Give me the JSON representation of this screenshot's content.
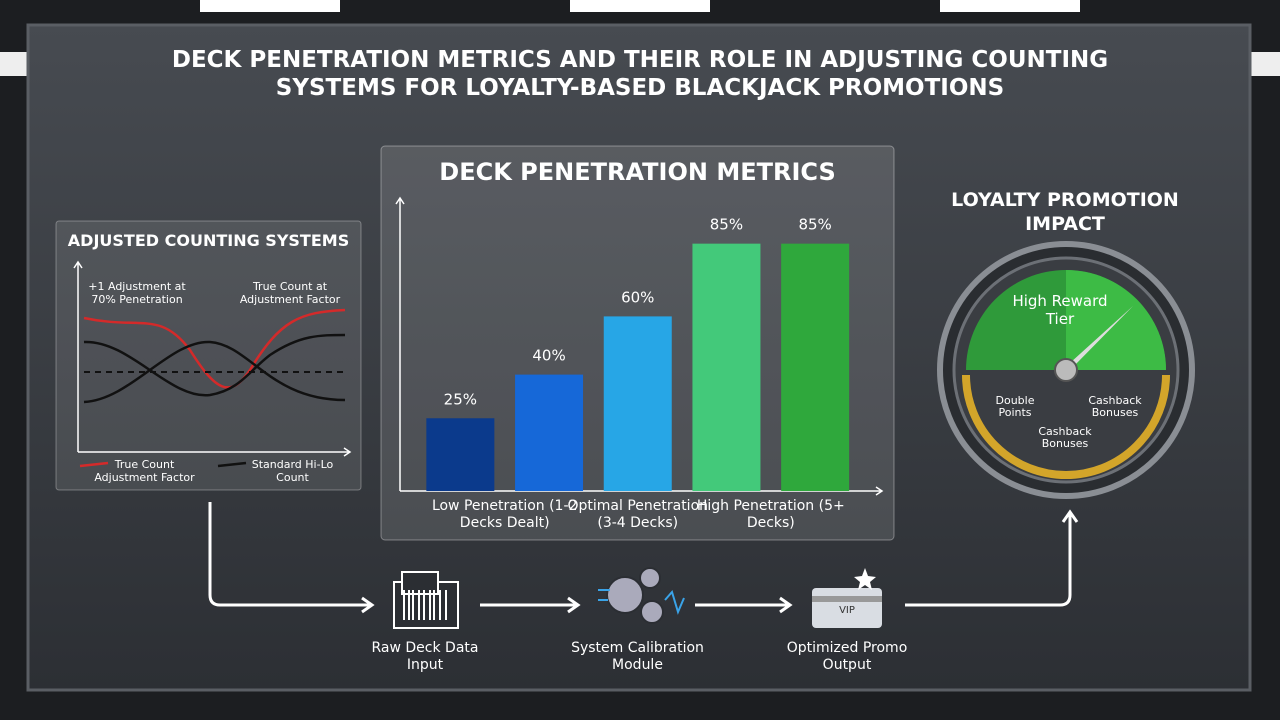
{
  "title": "DECK PENETRATION METRICS AND THEIR ROLE IN ADJUSTING COUNTING SYSTEMS FOR LOYALTY-BASED BLACKJACK PROMOTIONS",
  "chart_data": {
    "type": "bar",
    "title": "DECK PENETRATION METRICS",
    "categories": [
      "Low Penetration (1-2 Decks Dealt)",
      null,
      "Optimal Penetration (3-4 Decks)",
      "High Penetration (5+ Decks)",
      null
    ],
    "values": [
      25,
      40,
      60,
      85,
      85
    ],
    "value_labels": [
      "25%",
      "40%",
      "60%",
      "85%",
      "85%"
    ],
    "colors": [
      "#0b3a8c",
      "#1668d8",
      "#27a6e6",
      "#43c97a",
      "#2fa83c"
    ],
    "ylim": [
      0,
      100
    ]
  },
  "counting_panel": {
    "title": "ADJUSTED COUNTING SYSTEMS",
    "annotations": [
      "+1 Adjustment at 70% Penetration",
      "True Count at Adjustment Factor"
    ],
    "legend": [
      {
        "name": "True Count Adjustment Factor",
        "color": "#d42a2a"
      },
      {
        "name": "Standard Hi-Lo Count",
        "color": "#111111"
      }
    ]
  },
  "gauge": {
    "title": "LOYALTY PROMOTION IMPACT",
    "tier": "High Reward Tier",
    "labels": [
      "Double Points",
      "Cashback Bonuses",
      "Cashback Bonuses"
    ]
  },
  "flow": [
    "Raw Deck Data Input",
    "System Calibration Module",
    "Optimized Promo Output"
  ]
}
